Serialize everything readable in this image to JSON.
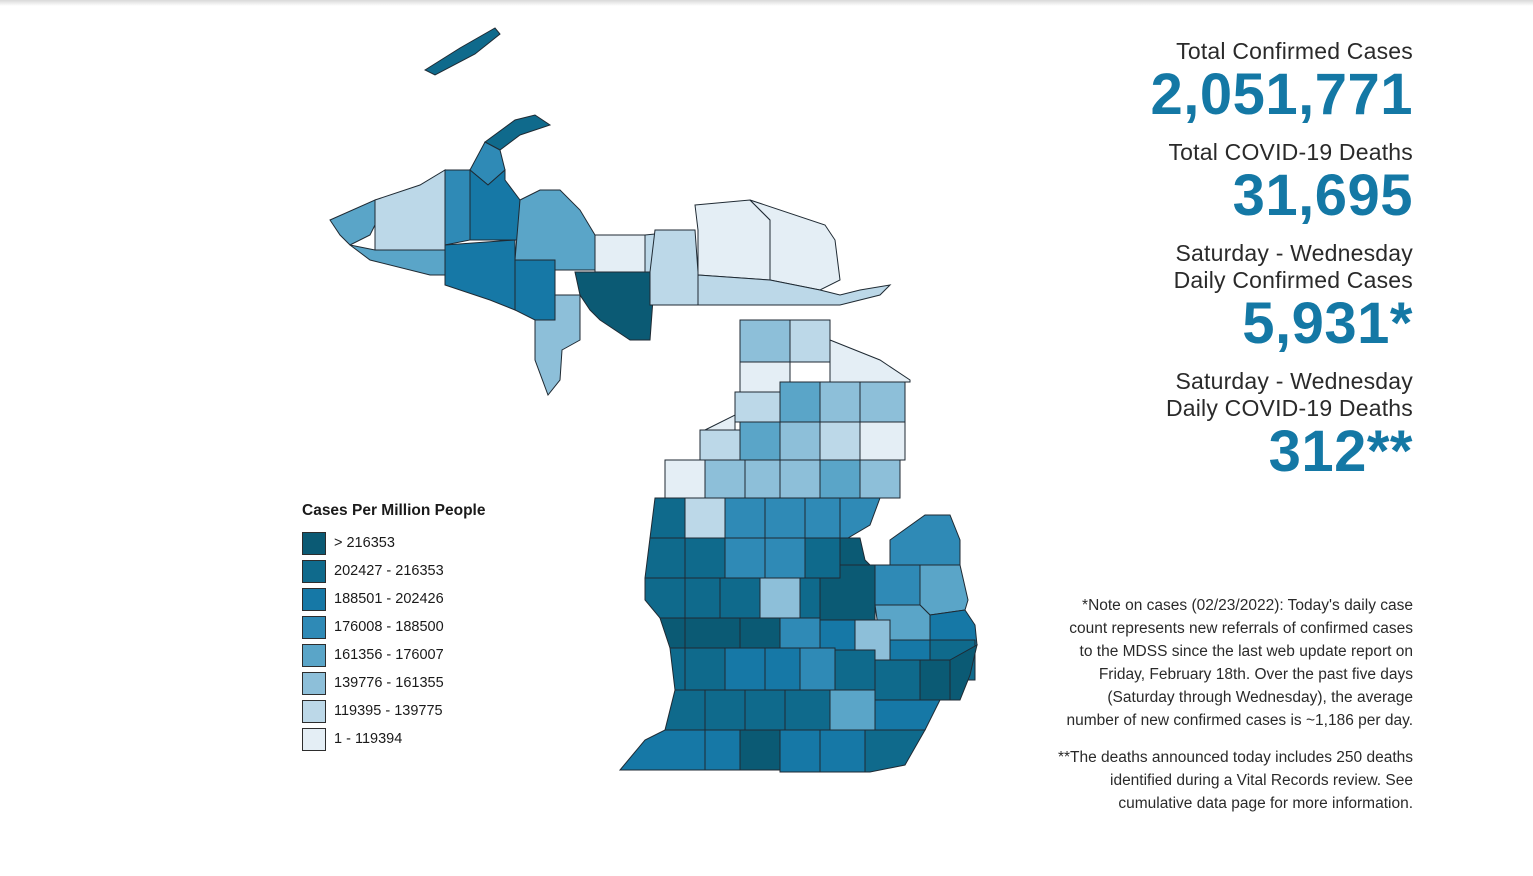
{
  "stats": [
    {
      "label": "Total Confirmed Cases",
      "value": "2,051,771"
    },
    {
      "label": "Total COVID-19 Deaths",
      "value": "31,695"
    },
    {
      "label": "Saturday - Wednesday\nDaily Confirmed Cases",
      "value": "5,931*"
    },
    {
      "label": "Saturday - Wednesday\nDaily COVID-19 Deaths",
      "value": "312**"
    }
  ],
  "notes": {
    "cases_note": "*Note on cases (02/23/2022): Today's daily case count represents new referrals of confirmed cases to the MDSS since the last web update report on Friday, February 18th.  Over the past five days (Saturday through Wednesday), the average number of new confirmed cases is ~1,186 per day.",
    "deaths_note": "**The deaths announced today includes 250 deaths identified during a Vital Records review. See cumulative data page for more information."
  },
  "legend": {
    "title": "Cases Per Million People",
    "items": [
      {
        "label": "> 216353",
        "color": "#0b5a74"
      },
      {
        "label": "202427 - 216353",
        "color": "#0f6a8c"
      },
      {
        "label": "188501 - 202426",
        "color": "#1678a6"
      },
      {
        "label": "176008 - 188500",
        "color": "#2f8ab6"
      },
      {
        "label": "161356 - 176007",
        "color": "#5aa5c8"
      },
      {
        "label": "139776 - 161355",
        "color": "#8dbfd9"
      },
      {
        "label": "119395 - 139775",
        "color": "#bcd8e8"
      },
      {
        "label": "1 - 119394",
        "color": "#e4eef5"
      }
    ]
  }
}
